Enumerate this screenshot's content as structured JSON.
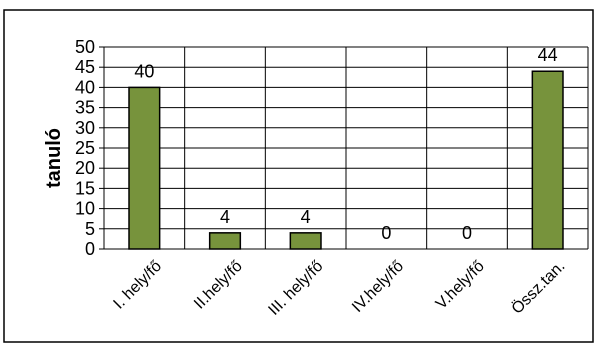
{
  "chart_data": {
    "type": "bar",
    "title": "",
    "xlabel": "",
    "ylabel": "tanuló",
    "ylim": [
      0,
      50
    ],
    "yticks": [
      0,
      5,
      10,
      15,
      20,
      25,
      30,
      35,
      40,
      45,
      50
    ],
    "categories": [
      "I. hely/fő",
      "II.hely/fő",
      "III. hely/fő",
      "IV.hely/fő",
      "V.hely/fő",
      "Össz.tan."
    ],
    "values": [
      40,
      4,
      4,
      0,
      0,
      44
    ],
    "data_labels": [
      "40",
      "4",
      "4",
      "0",
      "0",
      "44"
    ],
    "grid": true,
    "legend": "none",
    "colors": {
      "bar": "#77933C",
      "bar_border": "#000000",
      "grid": "#000000",
      "background": "#ffffff"
    }
  }
}
